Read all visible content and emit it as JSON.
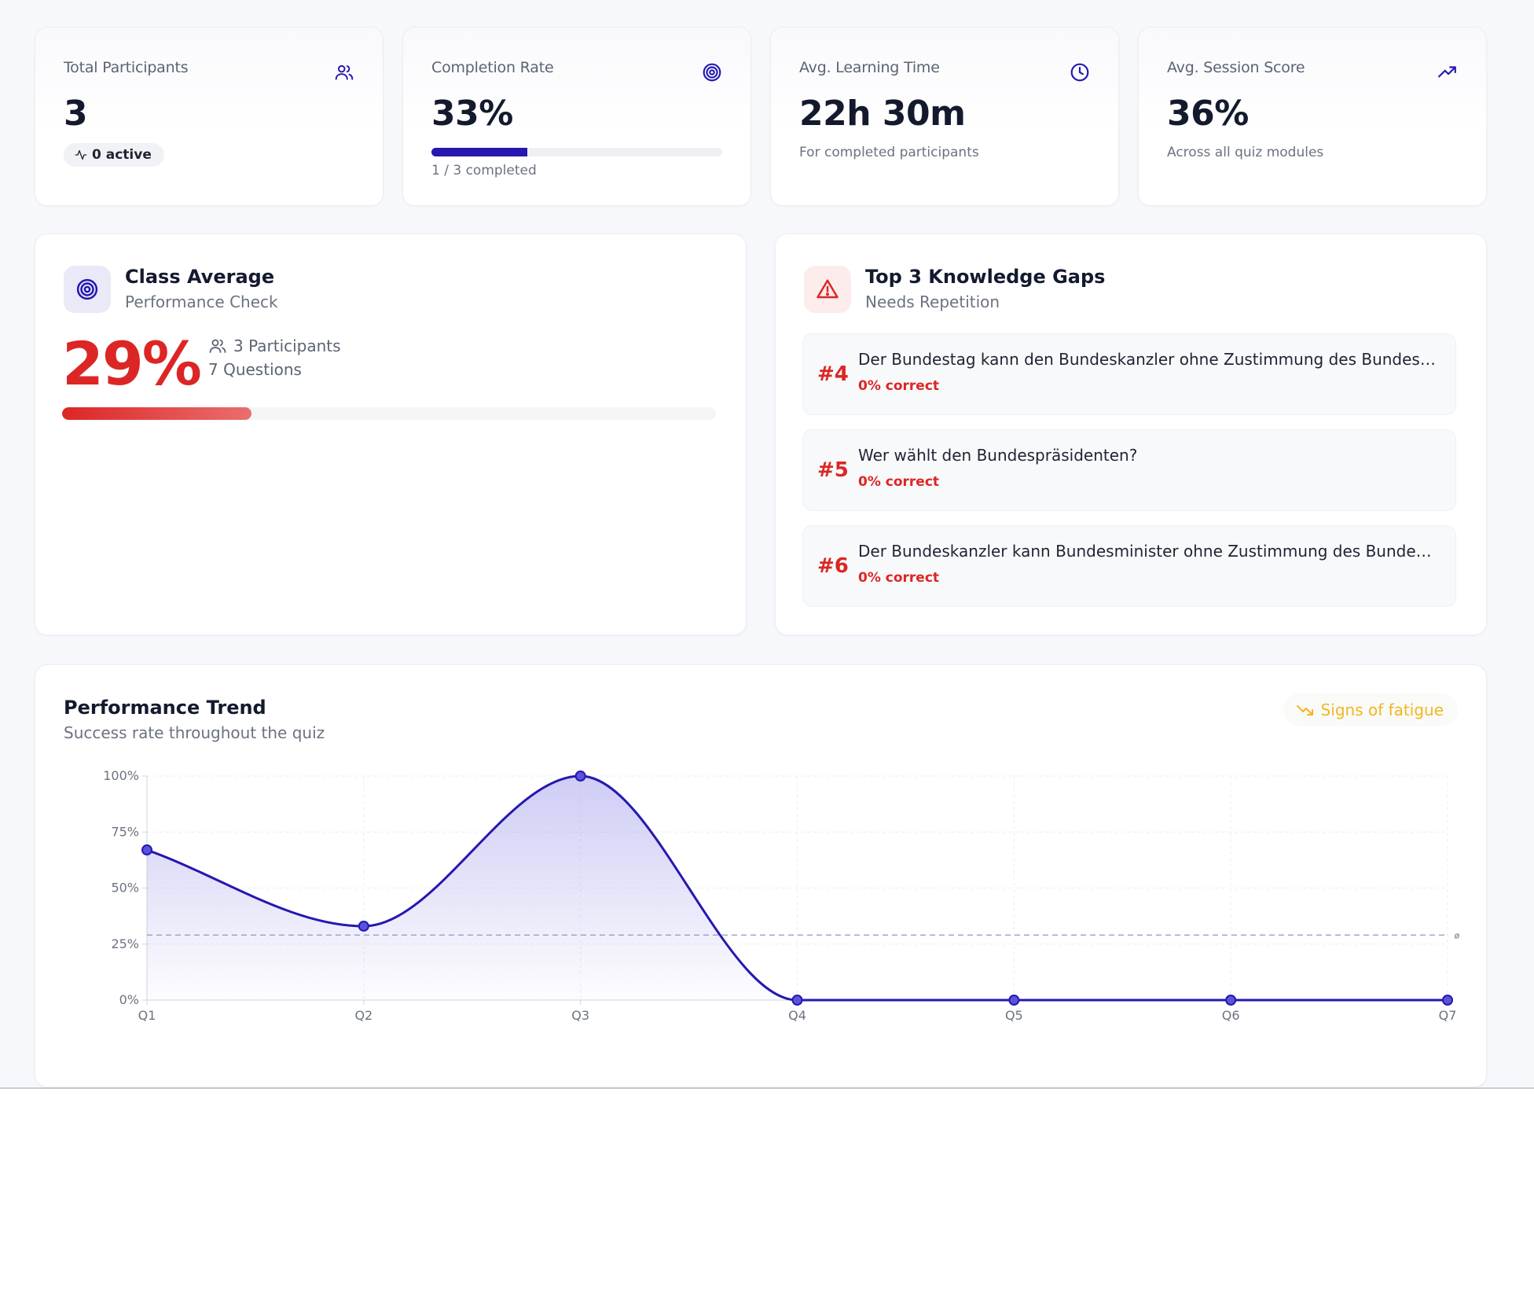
{
  "stats": [
    {
      "label": "Total Participants",
      "value": "3",
      "pill": "0 active",
      "icon": "users-icon"
    },
    {
      "label": "Completion Rate",
      "value": "33%",
      "progress": 0.33,
      "caption": "1 / 3 completed",
      "icon": "target-icon"
    },
    {
      "label": "Avg. Learning Time",
      "value": "22h 30m",
      "sub": "For completed participants",
      "icon": "clock-icon"
    },
    {
      "label": "Avg. Session Score",
      "value": "36%",
      "sub": "Across all quiz modules",
      "icon": "trending-up-icon"
    }
  ],
  "class_average": {
    "title": "Class Average",
    "subtitle": "Performance Check",
    "percent": "29%",
    "progress": 0.29,
    "participants": "3 Participants",
    "questions": "7 Questions"
  },
  "knowledge_gaps": {
    "title": "Top 3 Knowledge Gaps",
    "subtitle": "Needs Repetition",
    "items": [
      {
        "num": "#4",
        "text": "Der Bundestag kann den Bundeskanzler ohne Zustimmung des Bundespräsi...",
        "correct": "0% correct"
      },
      {
        "num": "#5",
        "text": "Wer wählt den Bundespräsidenten?",
        "correct": "0% correct"
      },
      {
        "num": "#6",
        "text": "Der Bundeskanzler kann Bundesminister ohne Zustimmung des Bundesprä...",
        "correct": "0% correct"
      }
    ]
  },
  "trend": {
    "title": "Performance Trend",
    "subtitle": "Success rate throughout the quiz",
    "badge": "Signs of fatigue",
    "colors": {
      "line": "#2418b0",
      "fill": "#8b86e6",
      "ref": "#9aa0c8",
      "warn": "#f3b61f"
    }
  },
  "chart_data": {
    "type": "area",
    "x": [
      "Q1",
      "Q2",
      "Q3",
      "Q4",
      "Q5",
      "Q6",
      "Q7"
    ],
    "values": [
      67,
      33,
      100,
      0,
      0,
      0,
      0
    ],
    "y_ticks": [
      "0%",
      "25%",
      "50%",
      "75%",
      "100%"
    ],
    "ylim": [
      0,
      100
    ],
    "reference_line": 29,
    "reference_label": "ø",
    "grid": true
  }
}
